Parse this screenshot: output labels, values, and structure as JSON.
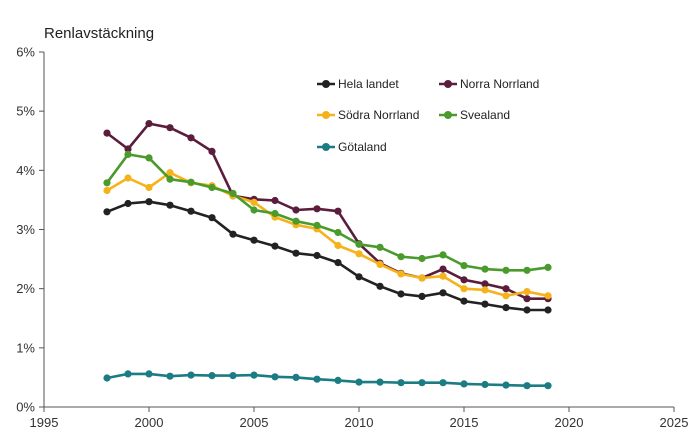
{
  "chart_data": {
    "type": "line",
    "title": "Renlavstäckning",
    "xlabel": "",
    "ylabel": "",
    "xlim": [
      1995,
      2025
    ],
    "ylim": [
      0,
      6
    ],
    "x_ticks": [
      "1995",
      "2000",
      "2005",
      "2010",
      "2015",
      "2020",
      "2025"
    ],
    "y_ticks": [
      "0%",
      "1%",
      "2%",
      "3%",
      "4%",
      "5%",
      "6%"
    ],
    "grid": false,
    "legend_position": "top-center",
    "x": [
      1998,
      1999,
      2000,
      2001,
      2002,
      2003,
      2004,
      2005,
      2006,
      2007,
      2008,
      2009,
      2010,
      2011,
      2012,
      2013,
      2014,
      2015,
      2016,
      2017,
      2018,
      2019
    ],
    "series": [
      {
        "name": "Hela landet",
        "color": "#222222",
        "values": [
          3.3,
          3.44,
          3.47,
          3.41,
          3.31,
          3.2,
          2.92,
          2.82,
          2.72,
          2.6,
          2.56,
          2.44,
          2.2,
          2.04,
          1.91,
          1.87,
          1.93,
          1.79,
          1.74,
          1.68,
          1.64,
          1.64
        ]
      },
      {
        "name": "Norra Norrland",
        "color": "#5a1e3c",
        "values": [
          4.63,
          4.36,
          4.79,
          4.72,
          4.55,
          4.32,
          3.57,
          3.51,
          3.49,
          3.33,
          3.35,
          3.31,
          2.76,
          2.43,
          2.26,
          2.18,
          2.33,
          2.15,
          2.08,
          2.0,
          1.83,
          1.83
        ]
      },
      {
        "name": "Södra Norrland",
        "color": "#f5b21a",
        "values": [
          3.66,
          3.87,
          3.71,
          3.96,
          3.79,
          3.74,
          3.57,
          3.46,
          3.21,
          3.08,
          3.01,
          2.73,
          2.59,
          2.41,
          2.25,
          2.18,
          2.21,
          2.0,
          1.98,
          1.88,
          1.95,
          1.88
        ]
      },
      {
        "name": "Svealand",
        "color": "#4a9b2c",
        "values": [
          3.79,
          4.27,
          4.21,
          3.85,
          3.8,
          3.71,
          3.61,
          3.33,
          3.27,
          3.14,
          3.07,
          2.95,
          2.75,
          2.7,
          2.54,
          2.51,
          2.57,
          2.39,
          2.33,
          2.31,
          2.31,
          2.36
        ]
      },
      {
        "name": "Götaland",
        "color": "#1b7c84",
        "values": [
          0.49,
          0.56,
          0.56,
          0.52,
          0.54,
          0.53,
          0.53,
          0.54,
          0.51,
          0.5,
          0.47,
          0.45,
          0.42,
          0.42,
          0.41,
          0.41,
          0.41,
          0.39,
          0.38,
          0.37,
          0.36,
          0.36
        ]
      }
    ],
    "legend_layout": [
      [
        "Hela landet",
        "Norra Norrland"
      ],
      [
        "Södra Norrland",
        "Svealand"
      ],
      [
        "Götaland"
      ]
    ]
  }
}
